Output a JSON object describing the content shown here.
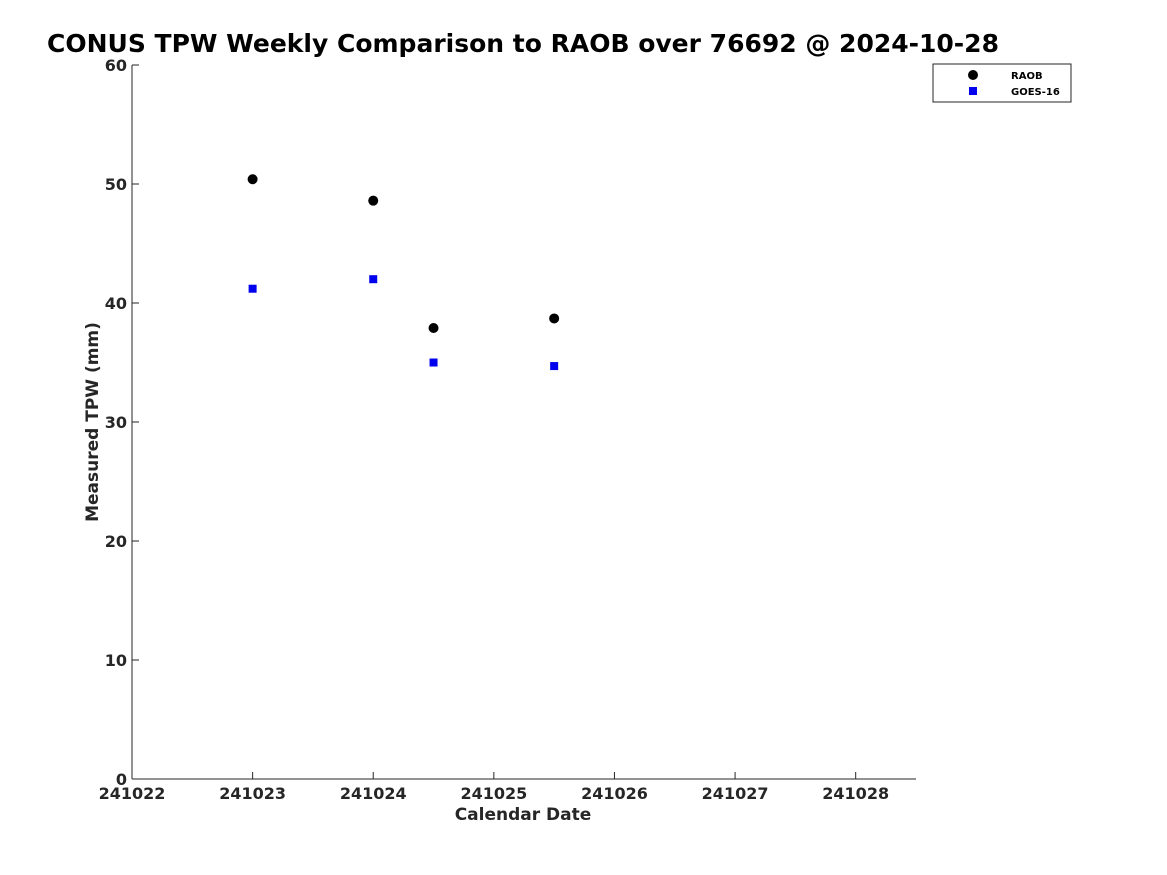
{
  "chart_data": {
    "type": "scatter",
    "title": "CONUS TPW Weekly Comparison to RAOB over 76692 @ 2024-10-28",
    "xlabel": "Calendar Date",
    "ylabel": "Measured TPW (mm)",
    "xlim": [
      "241022",
      "241028.5"
    ],
    "ylim": [
      0,
      60
    ],
    "x_ticks": [
      "241022",
      "241023",
      "241024",
      "241025",
      "241026",
      "241027",
      "241028"
    ],
    "y_ticks": [
      0,
      10,
      20,
      30,
      40,
      50,
      60
    ],
    "grid": false,
    "legend_position": "top-right, outside plot area",
    "series": [
      {
        "name": "RAOB",
        "marker": "circle",
        "color": "#000000",
        "x": [
          "241023",
          "241024",
          "241024.5",
          "241025.5"
        ],
        "y": [
          50.4,
          48.6,
          37.9,
          38.7
        ]
      },
      {
        "name": "GOES-16",
        "marker": "square",
        "color": "#0000ee",
        "x": [
          "241023",
          "241024",
          "241024.5",
          "241025.5"
        ],
        "y": [
          41.2,
          42.0,
          35.0,
          34.7
        ]
      }
    ]
  }
}
